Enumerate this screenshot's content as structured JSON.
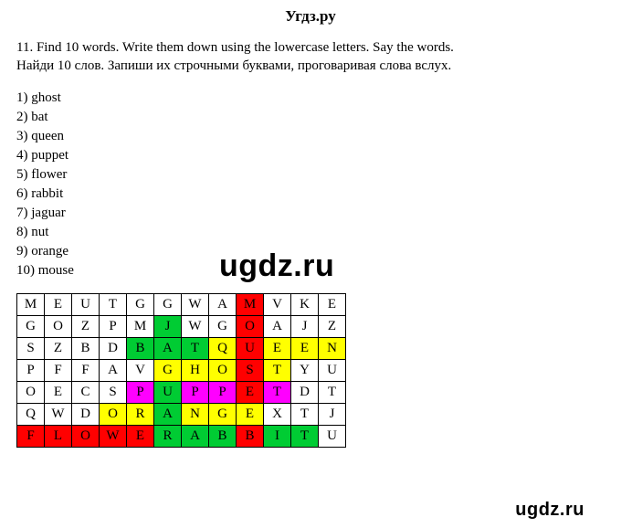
{
  "brand": "Угдз.ру",
  "instructions": {
    "line1": "11. Find 10 words. Write them down using the lowercase letters. Say the words.",
    "line2": "Найди 10 слов. Запиши их строчными буквами, проговаривая слова вслух."
  },
  "answers": [
    "1) ghost",
    "2) bat",
    "3) queen",
    "4) puppet",
    "5) flower",
    "6) rabbit",
    "7) jaguar",
    "8) nut",
    "9) orange",
    "10) mouse"
  ],
  "watermark_mid": "ugdz.ru",
  "watermark_bottom": "ugdz.ru",
  "colors": {
    "yellow": "#ffff00",
    "green": "#00cc33",
    "red": "#ff0000",
    "magenta": "#ff00ff",
    "none": "transparent"
  },
  "grid": {
    "cols": 12,
    "rows": 7,
    "cells": [
      [
        {
          "l": "M",
          "c": "none"
        },
        {
          "l": "E",
          "c": "none"
        },
        {
          "l": "U",
          "c": "none"
        },
        {
          "l": "T",
          "c": "none"
        },
        {
          "l": "G",
          "c": "none"
        },
        {
          "l": "G",
          "c": "none"
        },
        {
          "l": "W",
          "c": "none"
        },
        {
          "l": "A",
          "c": "none"
        },
        {
          "l": "M",
          "c": "red"
        },
        {
          "l": "V",
          "c": "none"
        },
        {
          "l": "K",
          "c": "none"
        },
        {
          "l": "E",
          "c": "none"
        }
      ],
      [
        {
          "l": "G",
          "c": "none"
        },
        {
          "l": "O",
          "c": "none"
        },
        {
          "l": "Z",
          "c": "none"
        },
        {
          "l": "P",
          "c": "none"
        },
        {
          "l": "M",
          "c": "none"
        },
        {
          "l": "J",
          "c": "green"
        },
        {
          "l": "W",
          "c": "none"
        },
        {
          "l": "G",
          "c": "none"
        },
        {
          "l": "O",
          "c": "red"
        },
        {
          "l": "A",
          "c": "none"
        },
        {
          "l": "J",
          "c": "none"
        },
        {
          "l": "Z",
          "c": "none"
        }
      ],
      [
        {
          "l": "S",
          "c": "none"
        },
        {
          "l": "Z",
          "c": "none"
        },
        {
          "l": "B",
          "c": "none"
        },
        {
          "l": "D",
          "c": "none"
        },
        {
          "l": "B",
          "c": "green"
        },
        {
          "l": "A",
          "c": "green"
        },
        {
          "l": "T",
          "c": "green"
        },
        {
          "l": "Q",
          "c": "yellow"
        },
        {
          "l": "U",
          "c": "red"
        },
        {
          "l": "E",
          "c": "yellow"
        },
        {
          "l": "E",
          "c": "yellow"
        },
        {
          "l": "N",
          "c": "yellow"
        }
      ],
      [
        {
          "l": "P",
          "c": "none"
        },
        {
          "l": "F",
          "c": "none"
        },
        {
          "l": "F",
          "c": "none"
        },
        {
          "l": "A",
          "c": "none"
        },
        {
          "l": "V",
          "c": "none"
        },
        {
          "l": "G",
          "c": "yellow"
        },
        {
          "l": "H",
          "c": "yellow"
        },
        {
          "l": "O",
          "c": "yellow"
        },
        {
          "l": "S",
          "c": "red"
        },
        {
          "l": "T",
          "c": "yellow"
        },
        {
          "l": "Y",
          "c": "none"
        },
        {
          "l": "U",
          "c": "none"
        }
      ],
      [
        {
          "l": "O",
          "c": "none"
        },
        {
          "l": "E",
          "c": "none"
        },
        {
          "l": "C",
          "c": "none"
        },
        {
          "l": "S",
          "c": "none"
        },
        {
          "l": "P",
          "c": "magenta"
        },
        {
          "l": "U",
          "c": "green"
        },
        {
          "l": "P",
          "c": "magenta"
        },
        {
          "l": "P",
          "c": "magenta"
        },
        {
          "l": "E",
          "c": "red"
        },
        {
          "l": "T",
          "c": "magenta"
        },
        {
          "l": "D",
          "c": "none"
        },
        {
          "l": "T",
          "c": "none"
        }
      ],
      [
        {
          "l": "Q",
          "c": "none"
        },
        {
          "l": "W",
          "c": "none"
        },
        {
          "l": "D",
          "c": "none"
        },
        {
          "l": "O",
          "c": "yellow"
        },
        {
          "l": "R",
          "c": "yellow"
        },
        {
          "l": "A",
          "c": "green"
        },
        {
          "l": "N",
          "c": "yellow"
        },
        {
          "l": "G",
          "c": "yellow"
        },
        {
          "l": "E",
          "c": "yellow"
        },
        {
          "l": "X",
          "c": "none"
        },
        {
          "l": "T",
          "c": "none"
        },
        {
          "l": "J",
          "c": "none"
        }
      ],
      [
        {
          "l": "F",
          "c": "red"
        },
        {
          "l": "L",
          "c": "red"
        },
        {
          "l": "O",
          "c": "red"
        },
        {
          "l": "W",
          "c": "red"
        },
        {
          "l": "E",
          "c": "red"
        },
        {
          "l": "R",
          "c": "green"
        },
        {
          "l": "A",
          "c": "green"
        },
        {
          "l": "B",
          "c": "green"
        },
        {
          "l": "B",
          "c": "red"
        },
        {
          "l": "I",
          "c": "green"
        },
        {
          "l": "T",
          "c": "green"
        },
        {
          "l": "U",
          "c": "none"
        }
      ]
    ]
  }
}
